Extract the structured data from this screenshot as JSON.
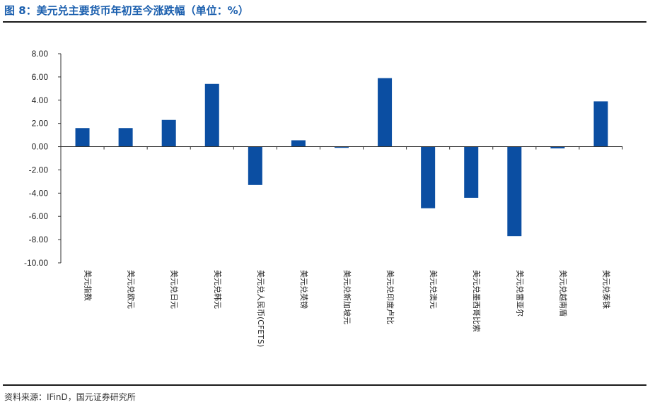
{
  "header": {
    "title": "图 8：美元兑主要货币年初至今涨跌幅（单位：%）"
  },
  "footer": {
    "source": "资料来源：IFinD，国元证券研究所"
  },
  "colors": {
    "bar": "#0b4ea2",
    "title": "#1b5fae"
  },
  "chart_data": {
    "type": "bar",
    "categories": [
      "美元指数",
      "美元兑欧元",
      "美元兑日元",
      "美元兑韩元",
      "美元兑人民币(CFETS)",
      "美元兑英镑",
      "美元兑新加坡元",
      "美元兑印度卢比",
      "美元兑澳元",
      "美元兑墨西哥比索",
      "美元兑雷亚尔",
      "美元兑越南盾",
      "美元兑泰铢"
    ],
    "values": [
      1.6,
      1.6,
      2.3,
      5.4,
      -3.3,
      0.55,
      -0.1,
      5.9,
      -5.3,
      -4.4,
      -7.7,
      -0.15,
      3.9
    ],
    "ylim": [
      -10,
      8
    ],
    "yticks": [
      "8.00",
      "6.00",
      "4.00",
      "2.00",
      "0.00",
      "-2.00",
      "-4.00",
      "-6.00",
      "-8.00",
      "-10.00"
    ],
    "grid": false,
    "legend": "none"
  }
}
